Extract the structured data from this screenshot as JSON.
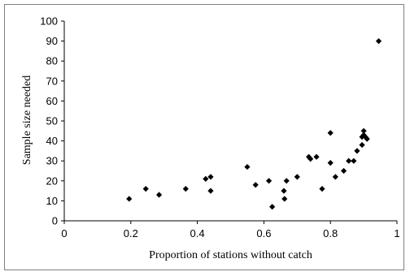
{
  "chart_data": {
    "type": "scatter",
    "title": "",
    "xlabel": "Proportion of stations without catch",
    "ylabel": "Sample size needed",
    "xlim": [
      0,
      1
    ],
    "ylim": [
      0,
      100
    ],
    "x_ticks": [
      0,
      0.2,
      0.4,
      0.6,
      0.8,
      1
    ],
    "x_tick_labels": [
      "0",
      "0.2",
      "0.4",
      "0.6",
      "0.8",
      "1"
    ],
    "y_ticks": [
      0,
      10,
      20,
      30,
      40,
      50,
      60,
      70,
      80,
      90,
      100
    ],
    "y_tick_labels": [
      "0",
      "10",
      "20",
      "30",
      "40",
      "50",
      "60",
      "70",
      "80",
      "90",
      "100"
    ],
    "grid": false,
    "legend": "none",
    "marker": "diamond",
    "marker_color": "#000000",
    "series": [
      {
        "points": [
          [
            0.195,
            11
          ],
          [
            0.245,
            16
          ],
          [
            0.285,
            13
          ],
          [
            0.365,
            16
          ],
          [
            0.425,
            21
          ],
          [
            0.44,
            22
          ],
          [
            0.44,
            15
          ],
          [
            0.55,
            27
          ],
          [
            0.575,
            18
          ],
          [
            0.615,
            20
          ],
          [
            0.625,
            7
          ],
          [
            0.66,
            15
          ],
          [
            0.662,
            11
          ],
          [
            0.668,
            20
          ],
          [
            0.7,
            22
          ],
          [
            0.735,
            32
          ],
          [
            0.74,
            31
          ],
          [
            0.758,
            32
          ],
          [
            0.775,
            16
          ],
          [
            0.8,
            29
          ],
          [
            0.8,
            44
          ],
          [
            0.815,
            22
          ],
          [
            0.84,
            25
          ],
          [
            0.855,
            30
          ],
          [
            0.87,
            30
          ],
          [
            0.88,
            35
          ],
          [
            0.895,
            38
          ],
          [
            0.895,
            42
          ],
          [
            0.9,
            43
          ],
          [
            0.9,
            45
          ],
          [
            0.905,
            42
          ],
          [
            0.91,
            41
          ],
          [
            0.945,
            90
          ]
        ]
      }
    ]
  }
}
